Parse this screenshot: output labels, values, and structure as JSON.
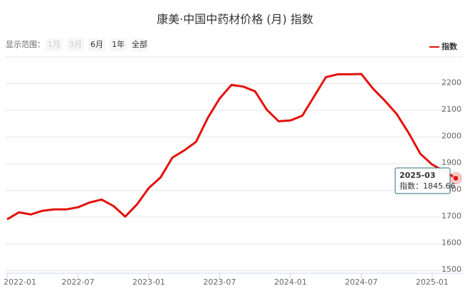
{
  "chart_data": {
    "type": "line",
    "title": "康美·中国中药材价格 (月) 指数",
    "range_selector": {
      "label": "显示范围：",
      "buttons": [
        {
          "text": "1月",
          "enabled": false
        },
        {
          "text": "3月",
          "enabled": false
        },
        {
          "text": "6月",
          "enabled": true
        },
        {
          "text": "1年",
          "enabled": true
        },
        {
          "text": "全部",
          "enabled": true
        }
      ]
    },
    "legend": "top-right",
    "grid": true,
    "categories": [
      "2022-01",
      null,
      null,
      null,
      null,
      null,
      "2022-07",
      null,
      null,
      null,
      null,
      null,
      "2023-01",
      null,
      null,
      null,
      null,
      null,
      "2023-07",
      null,
      null,
      null,
      null,
      null,
      "2024-01",
      null,
      null,
      null,
      null,
      null,
      "2024-07",
      null,
      null,
      null,
      null,
      null,
      "2025-01",
      null,
      null
    ],
    "series": [
      {
        "name": "指数",
        "color": "#e3120b",
        "values": [
          1692,
          1718,
          1710,
          1724,
          1729,
          1729,
          1737,
          1755,
          1766,
          1742,
          1702,
          1748,
          1809,
          1849,
          1923,
          1950,
          1982,
          2072,
          2144,
          2195,
          2189,
          2171,
          2102,
          2059,
          2062,
          2080,
          2152,
          2224,
          2235,
          2235,
          2236,
          2181,
          2136,
          2086,
          2016,
          1937,
          1897,
          1873,
          1845.66
        ]
      }
    ],
    "ylim": [
      1490,
      2300
    ],
    "yticks": [
      1500,
      1600,
      1700,
      1800,
      1900,
      2000,
      2100,
      2200
    ],
    "tooltip": {
      "index": 38,
      "title": "2025-03",
      "label": "指数："
    }
  }
}
